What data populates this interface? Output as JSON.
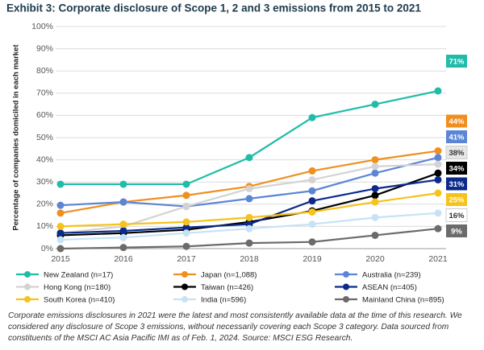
{
  "chart_data": {
    "type": "line",
    "title": "Exhibit 3: Corporate disclosure of Scope 1, 2 and 3 emissions from 2015 to 2021",
    "y_label": "Percentage of companies domiciled in each market",
    "categories": [
      "2015",
      "2016",
      "2017",
      "2018",
      "2019",
      "2020",
      "2021"
    ],
    "ylim": [
      0,
      100
    ],
    "yticks": [
      {
        "value": 0,
        "label": "0%"
      },
      {
        "value": 10,
        "label": "10%"
      },
      {
        "value": 20,
        "label": "20%"
      },
      {
        "value": 30,
        "label": "30%"
      },
      {
        "value": 40,
        "label": "40%"
      },
      {
        "value": 50,
        "label": "50%"
      },
      {
        "value": 60,
        "label": "60%"
      },
      {
        "value": 70,
        "label": "70%"
      },
      {
        "value": 80,
        "label": "80%"
      },
      {
        "value": 90,
        "label": "90%"
      },
      {
        "value": 100,
        "label": "100%"
      }
    ],
    "grid": true,
    "series": [
      {
        "name": "New Zealand (n=17)",
        "color": "#1fbcaa",
        "values": [
          29,
          29,
          29,
          41,
          59,
          65,
          71
        ],
        "value_labels": [
          null,
          null,
          null,
          null,
          null,
          null,
          "71%"
        ]
      },
      {
        "name": "Japan (n=1,088)",
        "color": "#ef8f1f",
        "values": [
          16,
          21,
          24,
          28,
          35,
          40,
          44
        ],
        "value_labels": [
          null,
          null,
          null,
          null,
          null,
          null,
          "44%"
        ]
      },
      {
        "name": "Australia (n=239)",
        "color": "#5c85d6",
        "values": [
          19.5,
          21,
          19,
          22.5,
          26,
          34,
          41
        ],
        "value_labels": [
          null,
          null,
          null,
          null,
          null,
          null,
          "41%"
        ]
      },
      {
        "name": "Hong Kong (n=180)",
        "color": "#d3d3d3",
        "values": [
          7,
          10,
          19,
          27,
          31,
          37,
          38
        ],
        "value_labels": [
          null,
          null,
          null,
          null,
          null,
          null,
          "38%"
        ]
      },
      {
        "name": "Taiwan (n=426)",
        "color": "#000000",
        "values": [
          6,
          7,
          8.5,
          12,
          17,
          24,
          34
        ],
        "value_labels": [
          null,
          null,
          null,
          null,
          null,
          null,
          "34%"
        ]
      },
      {
        "name": "ASEAN (n=405)",
        "color": "#0b2a8c",
        "values": [
          7,
          8,
          9.5,
          11,
          21.5,
          27,
          31
        ],
        "value_labels": [
          null,
          null,
          null,
          null,
          null,
          null,
          "31%"
        ]
      },
      {
        "name": "South Korea (n=410)",
        "color": "#f6c21c",
        "values": [
          10,
          11,
          12,
          14,
          16.5,
          21,
          25
        ],
        "value_labels": [
          null,
          null,
          null,
          null,
          null,
          null,
          "25%"
        ]
      },
      {
        "name": "India (n=596)",
        "color": "#c6e3f5",
        "values": [
          4,
          5,
          7,
          9,
          11,
          14,
          16
        ],
        "value_labels": [
          null,
          null,
          null,
          null,
          null,
          null,
          "16%"
        ]
      },
      {
        "name": "Mainland China (n=895)",
        "color": "#6b6b6b",
        "values": [
          0,
          0.5,
          1,
          2.5,
          3,
          6,
          9
        ],
        "value_labels": [
          null,
          null,
          null,
          null,
          null,
          null,
          "9%"
        ]
      }
    ],
    "footnote": "Corporate emissions disclosures in 2021 were the latest and most consistently available data at the time of this research. We considered any disclosure of Scope 3 emissions, without necessarily covering each Scope 3 category. Data sourced from constituents of the MSCI AC Asia Pacific IMI as of Feb. 1, 2024. Source: MSCI ESG Research."
  }
}
